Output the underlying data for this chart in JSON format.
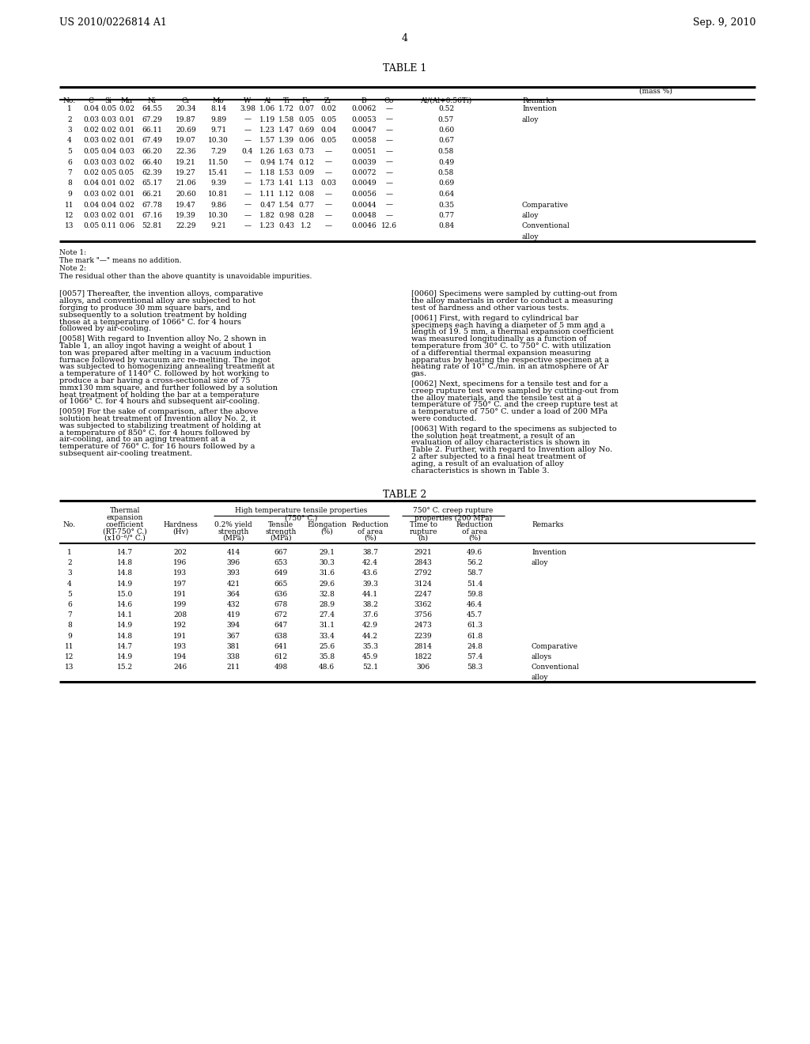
{
  "header_left": "US 2010/0226814 A1",
  "header_right": "Sep. 9, 2010",
  "page_number": "4",
  "table1_title": "TABLE 1",
  "table1_col_headers": [
    "No.",
    "C",
    "Si",
    "Mn",
    "Ni",
    "Cr",
    "Mo",
    "W",
    "Al",
    "Ti",
    "Fe",
    "Zr",
    "B",
    "Co",
    "Al/(Al+0.56Ti)",
    "Remarks"
  ],
  "table1_mass_pct": "(mass %)",
  "table1_rows": [
    [
      "1",
      "0.04",
      "0.05",
      "0.02",
      "64.55",
      "20.34",
      "8.14",
      "3.98",
      "1.06",
      "1.72",
      "0.07",
      "0.02",
      "0.0062",
      "—",
      "0.52",
      "Invention"
    ],
    [
      "2",
      "0.03",
      "0.03",
      "0.01",
      "67.29",
      "19.87",
      "9.89",
      "—",
      "1.19",
      "1.58",
      "0.05",
      "0.05",
      "0.0053",
      "—",
      "0.57",
      "alloy"
    ],
    [
      "3",
      "0.02",
      "0.02",
      "0.01",
      "66.11",
      "20.69",
      "9.71",
      "—",
      "1.23",
      "1.47",
      "0.69",
      "0.04",
      "0.0047",
      "—",
      "0.60",
      ""
    ],
    [
      "4",
      "0.03",
      "0.02",
      "0.01",
      "67.49",
      "19.07",
      "10.30",
      "—",
      "1.57",
      "1.39",
      "0.06",
      "0.05",
      "0.0058",
      "—",
      "0.67",
      ""
    ],
    [
      "5",
      "0.05",
      "0.04",
      "0.03",
      "66.20",
      "22.36",
      "7.29",
      "0.4",
      "1.26",
      "1.63",
      "0.73",
      "—",
      "0.0051",
      "—",
      "0.58",
      ""
    ],
    [
      "6",
      "0.03",
      "0.03",
      "0.02",
      "66.40",
      "19.21",
      "11.50",
      "—",
      "0.94",
      "1.74",
      "0.12",
      "—",
      "0.0039",
      "—",
      "0.49",
      ""
    ],
    [
      "7",
      "0.02",
      "0.05",
      "0.05",
      "62.39",
      "19.27",
      "15.41",
      "—",
      "1.18",
      "1.53",
      "0.09",
      "—",
      "0.0072",
      "—",
      "0.58",
      ""
    ],
    [
      "8",
      "0.04",
      "0.01",
      "0.02",
      "65.17",
      "21.06",
      "9.39",
      "—",
      "1.73",
      "1.41",
      "1.13",
      "0.03",
      "0.0049",
      "—",
      "0.69",
      ""
    ],
    [
      "9",
      "0.03",
      "0.02",
      "0.01",
      "66.21",
      "20.60",
      "10.81",
      "—",
      "1.11",
      "1.12",
      "0.08",
      "—",
      "0.0056",
      "—",
      "0.64",
      ""
    ],
    [
      "11",
      "0.04",
      "0.04",
      "0.02",
      "67.78",
      "19.47",
      "9.86",
      "—",
      "0.47",
      "1.54",
      "0.77",
      "—",
      "0.0044",
      "—",
      "0.35",
      "Comparative"
    ],
    [
      "12",
      "0.03",
      "0.02",
      "0.01",
      "67.16",
      "19.39",
      "10.30",
      "—",
      "1.82",
      "0.98",
      "0.28",
      "—",
      "0.0048",
      "—",
      "0.77",
      "alloy"
    ],
    [
      "13",
      "0.05",
      "0.11",
      "0.06",
      "52.81",
      "22.29",
      "9.21",
      "—",
      "1.23",
      "0.43",
      "1.2",
      "—",
      "0.0046",
      "12.6",
      "0.84",
      "Conventional"
    ],
    [
      "",
      "",
      "",
      "",
      "",
      "",
      "",
      "",
      "",
      "",
      "",
      "",
      "",
      "",
      "",
      "alloy"
    ]
  ],
  "table1_note1": "Note 1:",
  "table1_note1a": "The mark \"—\" means no addition.",
  "table1_note2": "Note 2:",
  "table1_note2a": "The residual other than the above quantity is unavoidable impurities.",
  "paras_left": [
    {
      "tag": "[0057]",
      "text": "Thereafter, the invention alloys, comparative alloys, and conventional alloy are subjected to hot forging to produce 30 mm square bars, and subsequently to a solution treatment by holding those at a temperature of 1066° C. for 4 hours followed by air-cooling."
    },
    {
      "tag": "[0058]",
      "text": "With regard to Invention alloy No. 2 shown in Table 1, an alloy ingot having a weight of about 1 ton was prepared after melting in a vacuum induction furnace followed by vacuum arc re-melting. The ingot was subjected to homogenizing annealing treatment at a temperature of 1140° C. followed by hot working to produce a bar having a cross-sectional size of 75 mmx130 mm square, and further followed by a solution heat treatment of holding the bar at a temperature of 1066° C. for 4 hours and subsequent air-cooling."
    },
    {
      "tag": "[0059]",
      "text": "For the sake of comparison, after the above solution heat treatment of Invention alloy No. 2, it was subjected to stabilizing treatment of holding at a temperature of 850° C. for 4 hours followed by air-cooling, and to an aging treatment at a temperature of 760° C. for 16 hours followed by a subsequent air-cooling treatment."
    }
  ],
  "paras_right": [
    {
      "tag": "[0060]",
      "text": "Specimens were sampled by cutting-out from the alloy materials in order to conduct a measuring test of hardness and other various tests."
    },
    {
      "tag": "[0061]",
      "text": "First, with regard to cylindrical bar specimens each having a diameter of 5 mm and a length of 19. 5 mm, a thermal expansion coefficient was measured longitudinally as a function of temperature from 30° C. to 750° C. with utilization of a differential thermal expansion measuring apparatus by heating the respective specimen at a heating rate of 10° C./min. in an atmosphere of Ar gas."
    },
    {
      "tag": "[0062]",
      "text": "Next, specimens for a tensile test and for a creep rupture test were sampled by cutting-out from the alloy materials, and the tensile test at a temperature of 750° C. and the creep rupture test at a temperature of 750° C. under a load of 200 MPa were conducted."
    },
    {
      "tag": "[0063]",
      "text": "With regard to the specimens as subjected to the solution heat treatment, a result of an evaluation of alloy characteristics is shown in Table 2. Further, with regard to Invention alloy No. 2 after subjected to a final heat treatment of aging, a result of an evaluation of alloy characteristics is shown in Table 3."
    }
  ],
  "table2_title": "TABLE 2",
  "table2_rows": [
    [
      "1",
      "14.7",
      "202",
      "414",
      "667",
      "29.1",
      "38.7",
      "2921",
      "49.6",
      "Invention"
    ],
    [
      "2",
      "14.8",
      "196",
      "396",
      "653",
      "30.3",
      "42.4",
      "2843",
      "56.2",
      "alloy"
    ],
    [
      "3",
      "14.8",
      "193",
      "393",
      "649",
      "31.6",
      "43.6",
      "2792",
      "58.7",
      ""
    ],
    [
      "4",
      "14.9",
      "197",
      "421",
      "665",
      "29.6",
      "39.3",
      "3124",
      "51.4",
      ""
    ],
    [
      "5",
      "15.0",
      "191",
      "364",
      "636",
      "32.8",
      "44.1",
      "2247",
      "59.8",
      ""
    ],
    [
      "6",
      "14.6",
      "199",
      "432",
      "678",
      "28.9",
      "38.2",
      "3362",
      "46.4",
      ""
    ],
    [
      "7",
      "14.1",
      "208",
      "419",
      "672",
      "27.4",
      "37.6",
      "3756",
      "45.7",
      ""
    ],
    [
      "8",
      "14.9",
      "192",
      "394",
      "647",
      "31.1",
      "42.9",
      "2473",
      "61.3",
      ""
    ],
    [
      "9",
      "14.8",
      "191",
      "367",
      "638",
      "33.4",
      "44.2",
      "2239",
      "61.8",
      ""
    ],
    [
      "11",
      "14.7",
      "193",
      "381",
      "641",
      "25.6",
      "35.3",
      "2814",
      "24.8",
      "Comparative"
    ],
    [
      "12",
      "14.9",
      "194",
      "338",
      "612",
      "35.8",
      "45.9",
      "1822",
      "57.4",
      "alloys"
    ],
    [
      "13",
      "15.2",
      "246",
      "211",
      "498",
      "48.6",
      "52.1",
      "306",
      "58.3",
      "Conventional"
    ],
    [
      "",
      "",
      "",
      "",
      "",
      "",
      "",
      "",
      "",
      "alloy"
    ]
  ],
  "bg_color": "#ffffff"
}
